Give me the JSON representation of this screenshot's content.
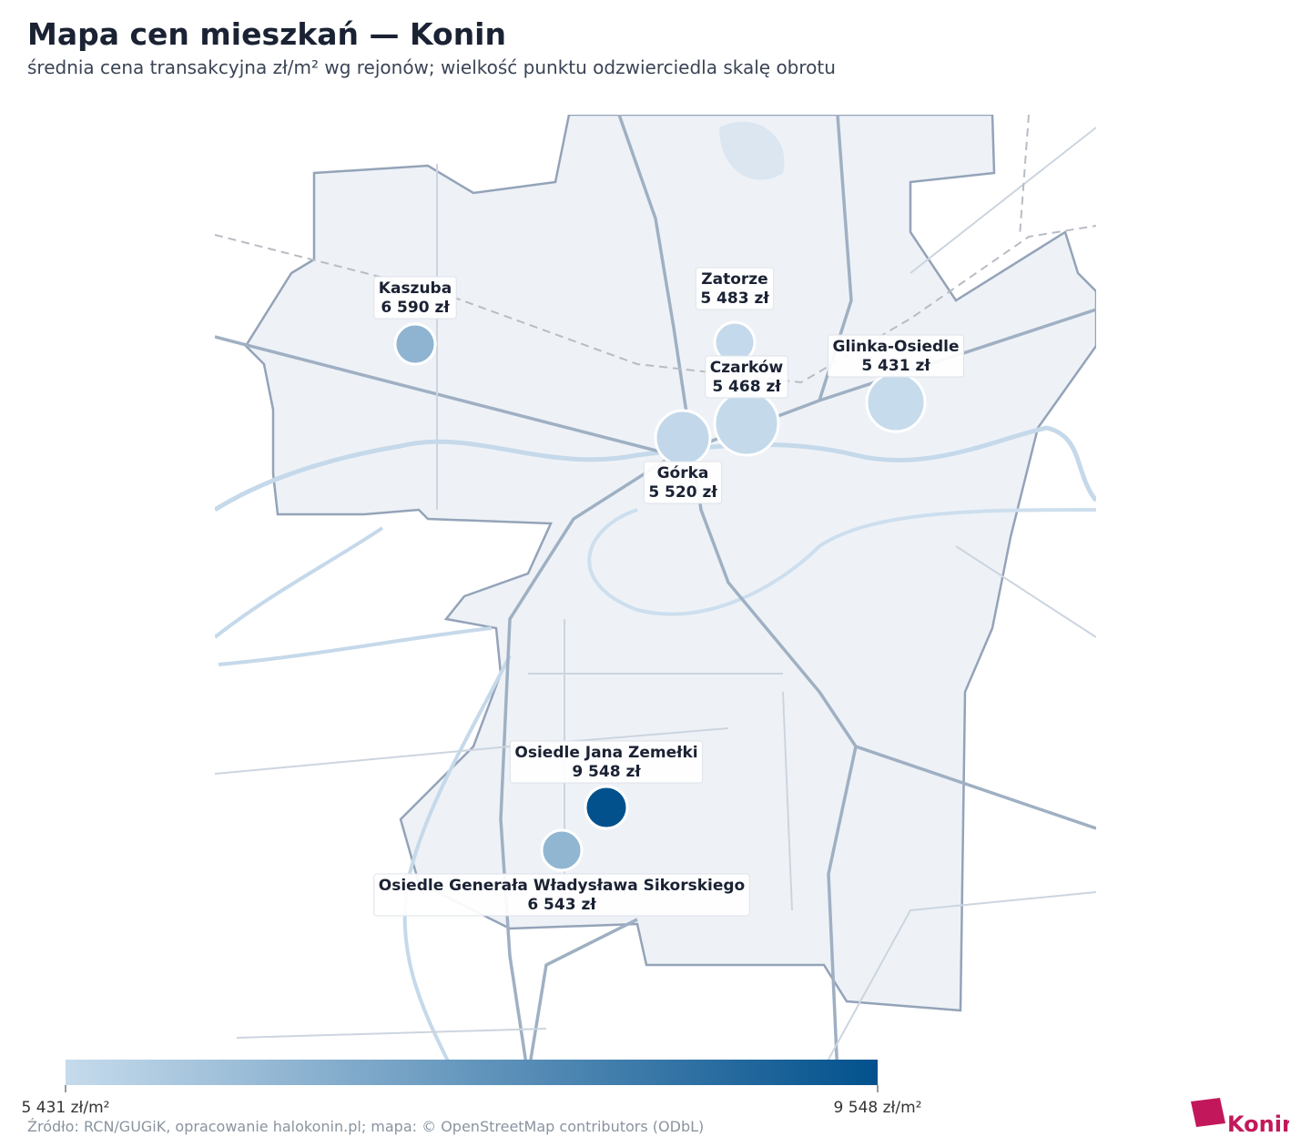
{
  "title": "Mapa cen mieszkań — Konin",
  "subtitle": "średnia cena transakcyjna zł/m² wg rejonów; wielkość punktu odzwierciedla skalę obrotu",
  "source": "Źródło: RCN/GUGiK, opracowanie halokonin.pl; mapa: © OpenStreetMap contributors (ODbL)",
  "logo": "Konin",
  "chart_data": {
    "type": "bubble-map",
    "districts": [
      {
        "name": "Kaszuba",
        "value": 6590,
        "value_label": "6 590 zł",
        "size": 22
      },
      {
        "name": "Zatorze",
        "value": 5483,
        "value_label": "5 483 zł",
        "size": 22
      },
      {
        "name": "Czarków",
        "value": 5468,
        "value_label": "5 468 zł",
        "size": 35
      },
      {
        "name": "Glinka-Osiedle",
        "value": 5431,
        "value_label": "5 431 zł",
        "size": 32
      },
      {
        "name": "Górka",
        "value": 5520,
        "value_label": "5 520 zł",
        "size": 30
      },
      {
        "name": "Osiedle Jana Zemełki",
        "value": 9548,
        "value_label": "9 548 zł",
        "size": 23
      },
      {
        "name": "Osiedle Generała Władysława Sikorskiego",
        "value": 6543,
        "value_label": "6 543 zł",
        "size": 22
      }
    ],
    "colorbar": {
      "colors": [
        "#c6dbec",
        "#02518d"
      ],
      "ticks": [
        {
          "value": 5431,
          "label": "5 431 zł/m²"
        },
        {
          "value": 9548,
          "label": "9 548 zł/m²"
        }
      ]
    }
  }
}
